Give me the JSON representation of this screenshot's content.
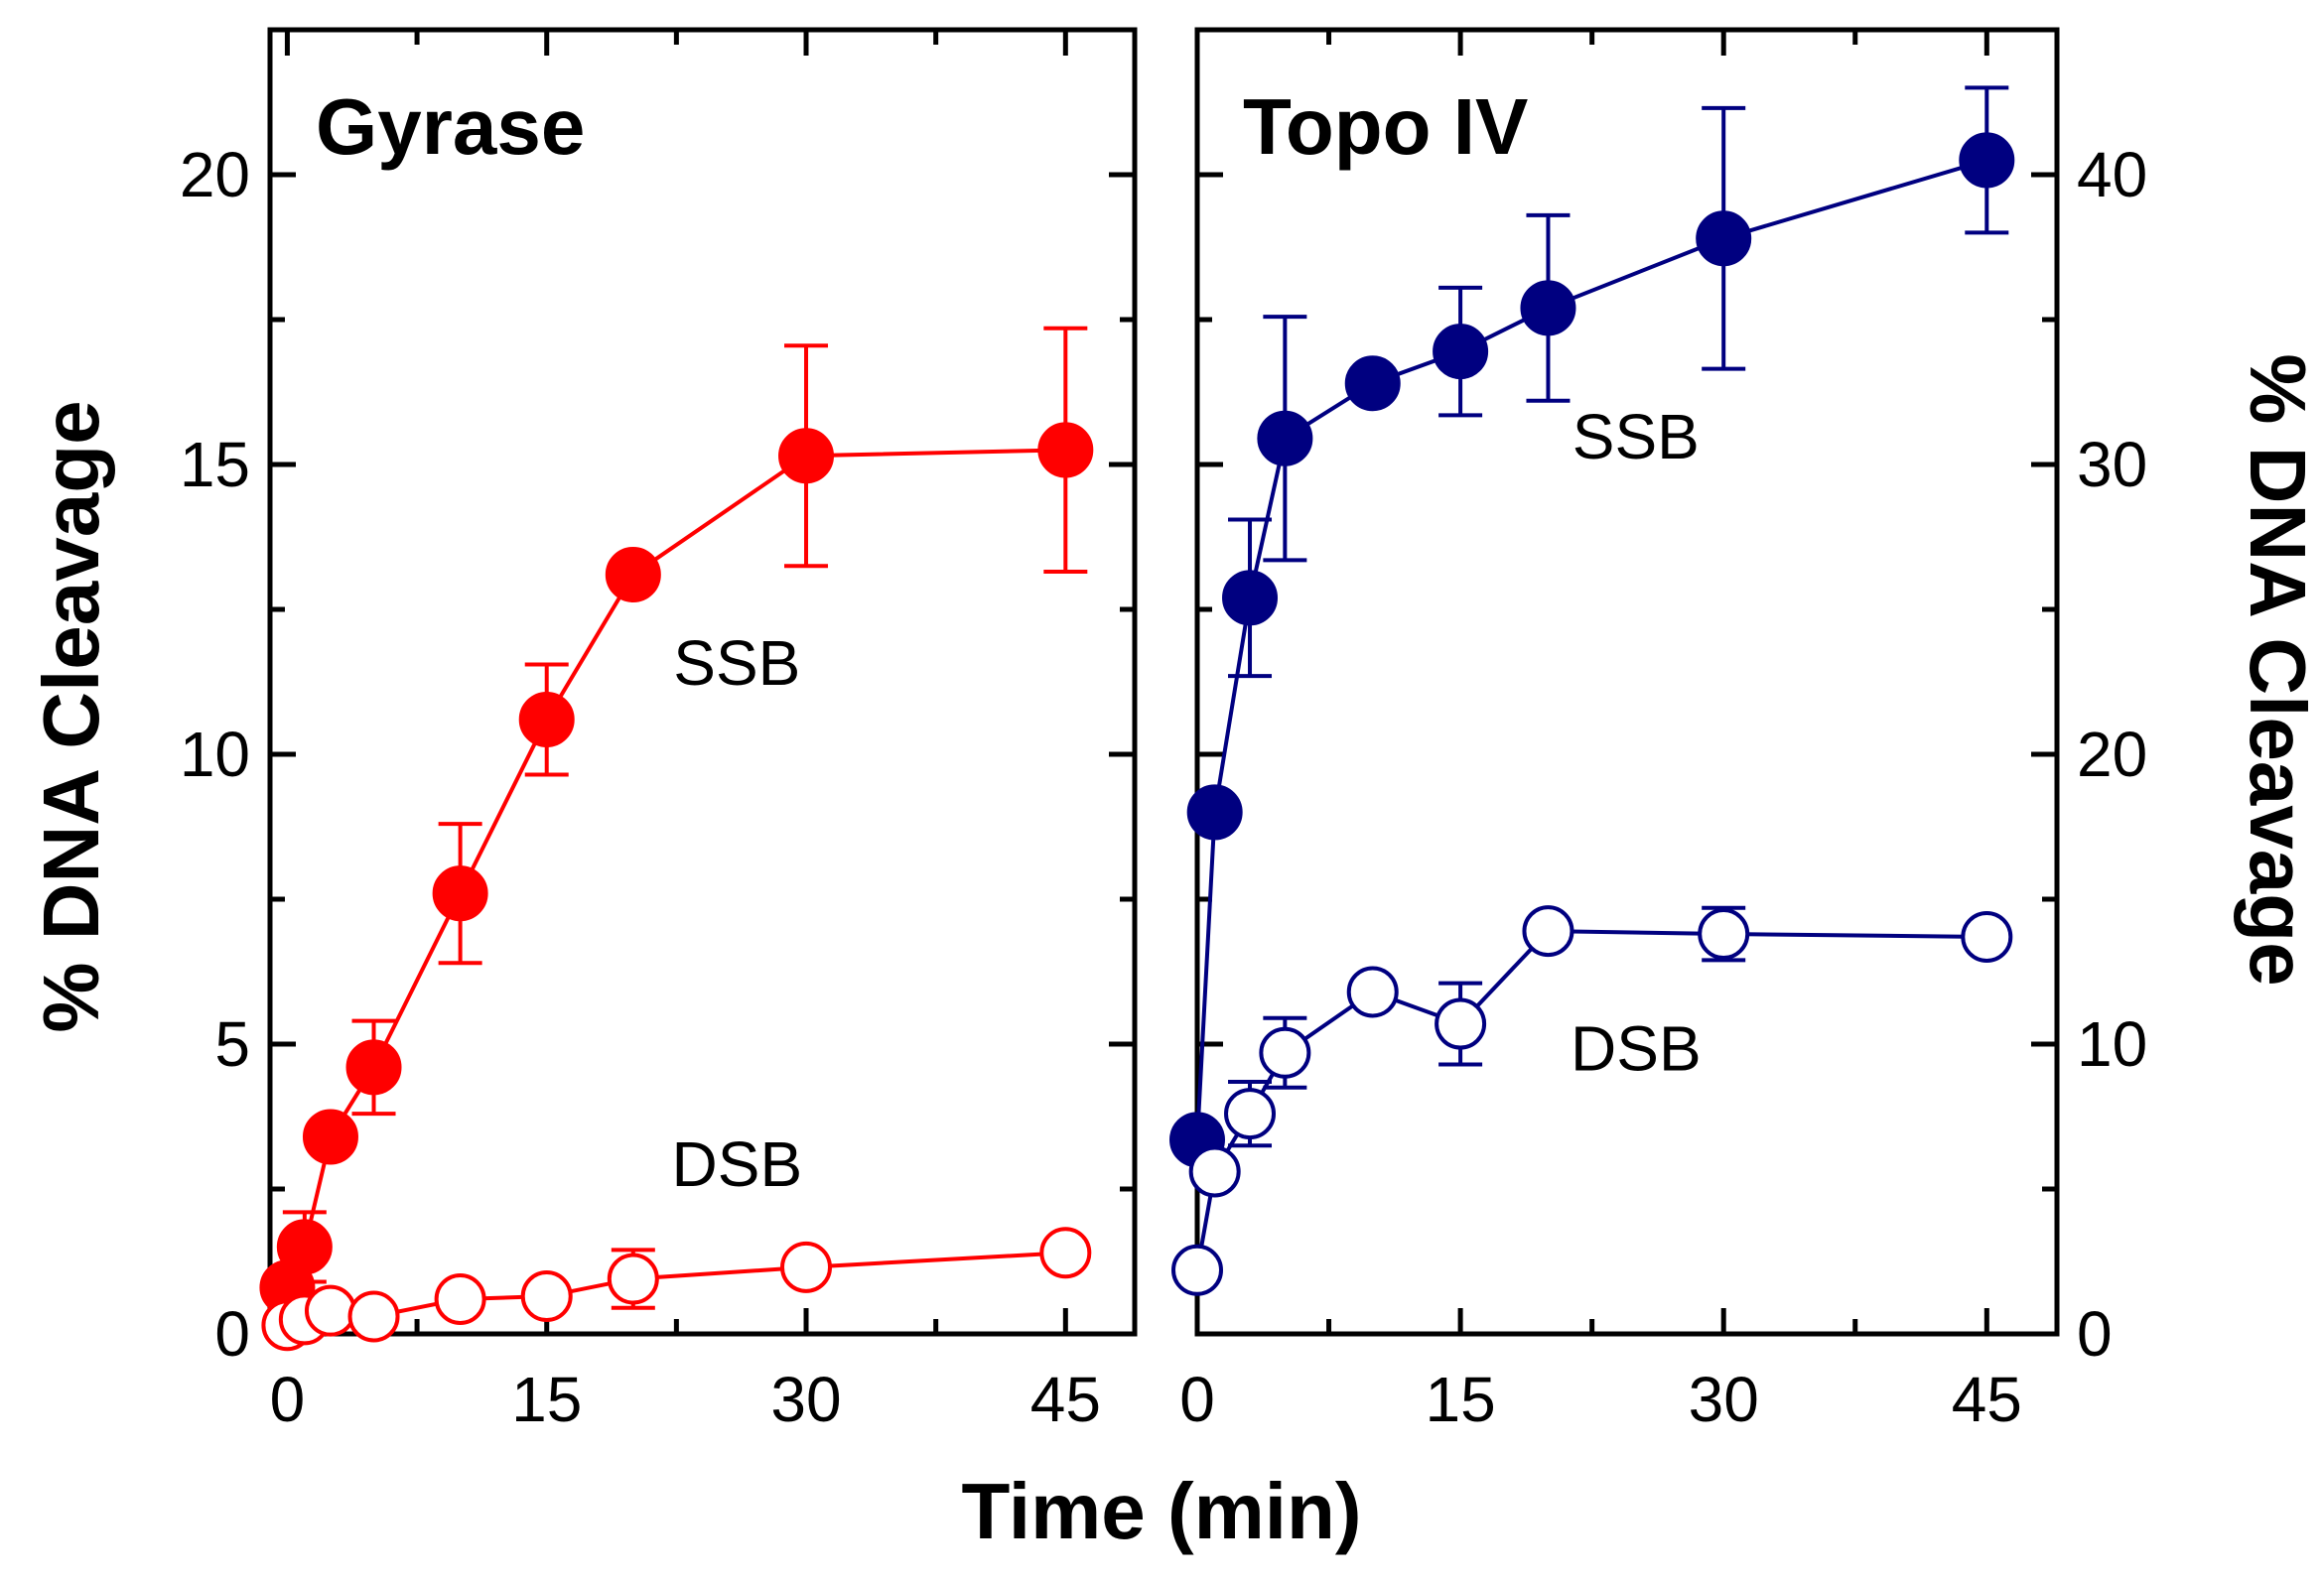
{
  "chart_data": [
    {
      "type": "line",
      "panel": "left",
      "title": "Gyrase",
      "xlabel": "Time (min)",
      "ylabel": "% DNA Cleavage",
      "xlim": [
        -1,
        49
      ],
      "ylim": [
        0,
        22.5
      ],
      "x_ticks": [
        0,
        15,
        30,
        45
      ],
      "x_tick_labels": [
        "0",
        "15",
        "30",
        "45"
      ],
      "y_ticks": [
        0,
        5,
        10,
        15,
        20
      ],
      "y_tick_labels": [
        "0",
        "5",
        "10",
        "15",
        "20"
      ],
      "y_axis_side": "left",
      "color": "#ff0000",
      "series": [
        {
          "name": "SSB",
          "marker": "filled-circle",
          "label_pos": {
            "x": 26,
            "y": 11.2
          },
          "points": [
            {
              "x": 0,
              "y": 0.8,
              "err": null
            },
            {
              "x": 1,
              "y": 1.5,
              "err": 0.6
            },
            {
              "x": 2.5,
              "y": 3.4,
              "err": null
            },
            {
              "x": 5,
              "y": 4.6,
              "err": 0.8
            },
            {
              "x": 10,
              "y": 7.6,
              "err": 1.2
            },
            {
              "x": 15,
              "y": 10.6,
              "err": 0.95
            },
            {
              "x": 20,
              "y": 13.1,
              "err": null
            },
            {
              "x": 30,
              "y": 15.15,
              "err": 1.9
            },
            {
              "x": 45,
              "y": 15.25,
              "err": 2.1
            }
          ]
        },
        {
          "name": "DSB",
          "marker": "open-circle",
          "label_pos": {
            "x": 26,
            "y": 2.55
          },
          "points": [
            {
              "x": 0,
              "y": 0.15,
              "err": null
            },
            {
              "x": 1,
              "y": 0.25,
              "err": null
            },
            {
              "x": 2.5,
              "y": 0.4,
              "err": null
            },
            {
              "x": 5,
              "y": 0.3,
              "err": null
            },
            {
              "x": 10,
              "y": 0.6,
              "err": null
            },
            {
              "x": 15,
              "y": 0.65,
              "err": null
            },
            {
              "x": 20,
              "y": 0.95,
              "err": 0.5
            },
            {
              "x": 30,
              "y": 1.15,
              "err": null
            },
            {
              "x": 45,
              "y": 1.4,
              "err": null
            }
          ]
        }
      ]
    },
    {
      "type": "line",
      "panel": "right",
      "title": "Topo IV",
      "xlabel": "Time (min)",
      "ylabel": "% DNA Cleavage",
      "xlim": [
        0,
        49
      ],
      "ylim": [
        0,
        45
      ],
      "x_ticks": [
        0,
        15,
        30,
        45
      ],
      "x_tick_labels": [
        "0",
        "15",
        "30",
        "45"
      ],
      "y_ticks": [
        0,
        10,
        20,
        30,
        40
      ],
      "y_tick_labels": [
        "0",
        "10",
        "20",
        "30",
        "40"
      ],
      "y_axis_side": "right",
      "color": "#000080",
      "series": [
        {
          "name": "SSB",
          "marker": "filled-circle",
          "label_pos": {
            "x": 25,
            "y": 30.2
          },
          "points": [
            {
              "x": 0,
              "y": 6.7,
              "err": null
            },
            {
              "x": 1,
              "y": 18.0,
              "err": null
            },
            {
              "x": 3,
              "y": 25.4,
              "err": 2.7
            },
            {
              "x": 5,
              "y": 30.9,
              "err": 4.2
            },
            {
              "x": 10,
              "y": 32.8,
              "err": null
            },
            {
              "x": 15,
              "y": 33.9,
              "err": 2.2
            },
            {
              "x": 20,
              "y": 35.4,
              "err": 3.2
            },
            {
              "x": 30,
              "y": 37.8,
              "err": 4.5
            },
            {
              "x": 45,
              "y": 40.5,
              "err": 2.5
            }
          ]
        },
        {
          "name": "DSB",
          "marker": "open-circle",
          "label_pos": {
            "x": 25,
            "y": 9.1
          },
          "points": [
            {
              "x": 0,
              "y": 2.2,
              "err": null
            },
            {
              "x": 1,
              "y": 5.6,
              "err": null
            },
            {
              "x": 3,
              "y": 7.6,
              "err": 1.1
            },
            {
              "x": 5,
              "y": 9.7,
              "err": 1.2
            },
            {
              "x": 10,
              "y": 11.8,
              "err": null
            },
            {
              "x": 15,
              "y": 10.7,
              "err": 1.4
            },
            {
              "x": 20,
              "y": 13.9,
              "err": null
            },
            {
              "x": 30,
              "y": 13.8,
              "err": 0.9
            },
            {
              "x": 45,
              "y": 13.7,
              "err": null
            }
          ]
        }
      ]
    }
  ]
}
